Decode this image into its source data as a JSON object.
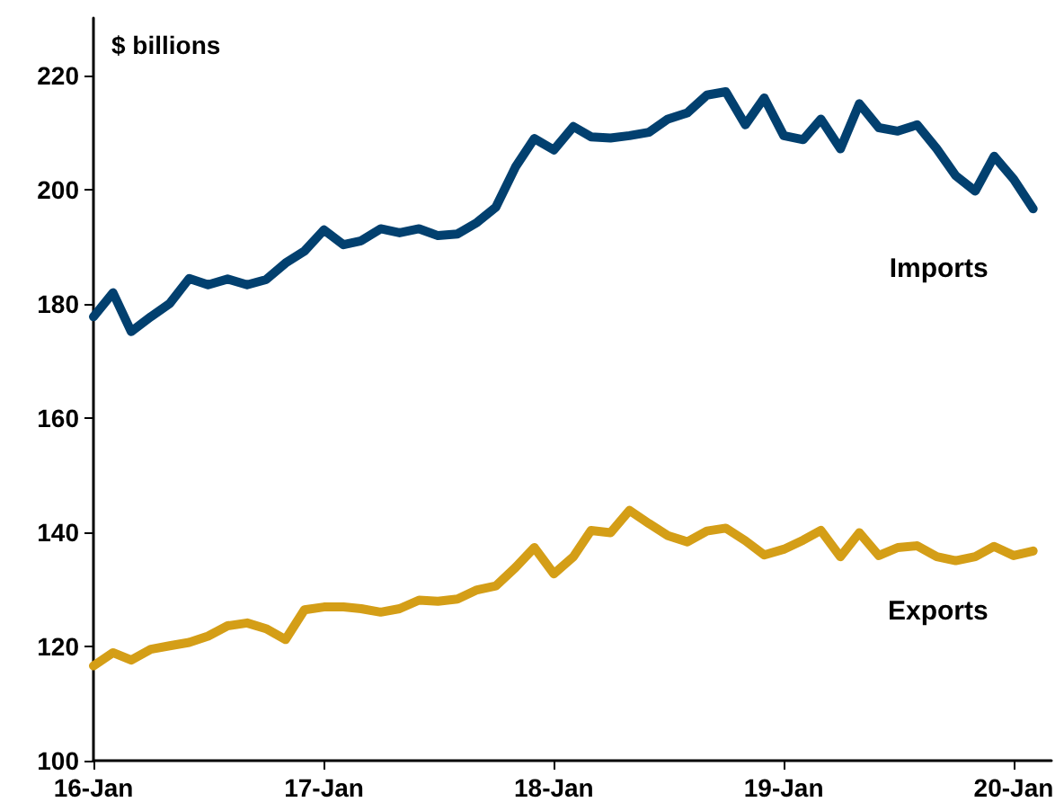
{
  "chart_data": {
    "type": "line",
    "ylabel": "$ billions",
    "x": [
      "2016-01",
      "2016-02",
      "2016-03",
      "2016-04",
      "2016-05",
      "2016-06",
      "2016-07",
      "2016-08",
      "2016-09",
      "2016-10",
      "2016-11",
      "2016-12",
      "2017-01",
      "2017-02",
      "2017-03",
      "2017-04",
      "2017-05",
      "2017-06",
      "2017-07",
      "2017-08",
      "2017-09",
      "2017-10",
      "2017-11",
      "2017-12",
      "2018-01",
      "2018-02",
      "2018-03",
      "2018-04",
      "2018-05",
      "2018-06",
      "2018-07",
      "2018-08",
      "2018-09",
      "2018-10",
      "2018-11",
      "2018-12",
      "2019-01",
      "2019-02",
      "2019-03",
      "2019-04",
      "2019-05",
      "2019-06",
      "2019-07",
      "2019-08",
      "2019-09",
      "2019-10",
      "2019-11",
      "2019-12",
      "2020-01",
      "2020-02"
    ],
    "series": [
      {
        "name": "Imports",
        "color": "#02406f",
        "values": [
          177.7,
          181.9,
          175.1,
          177.7,
          180,
          184.4,
          183.3,
          184.3,
          183.3,
          184.2,
          187.1,
          189.2,
          192.9,
          190.3,
          191,
          193.1,
          192.4,
          193.1,
          191.9,
          192.2,
          194.2,
          196.9,
          203.9,
          208.9,
          206.9,
          211,
          209.2,
          209,
          209.4,
          210,
          212.3,
          213.4,
          216.5,
          217.1,
          211.3,
          216,
          209.4,
          208.7,
          212.3,
          207.1,
          215,
          210.8,
          210.2,
          211.3,
          207.1,
          202.4,
          199.7,
          205.8,
          201.8,
          196.6
        ]
      },
      {
        "name": "Exports",
        "color": "#d49e17",
        "values": [
          116.6,
          118.9,
          117.6,
          119.5,
          120.1,
          120.7,
          121.8,
          123.6,
          124.1,
          123.1,
          121.2,
          126.4,
          126.9,
          126.9,
          126.6,
          126,
          126.6,
          128.1,
          127.9,
          128.3,
          129.9,
          130.6,
          133.8,
          137.3,
          132.7,
          135.7,
          140.3,
          139.9,
          143.8,
          141.5,
          139.4,
          138.3,
          140.2,
          140.7,
          138.5,
          136,
          137,
          138.6,
          140.3,
          135.7,
          139.9,
          135.9,
          137.3,
          137.6,
          135.7,
          135,
          135.7,
          137.5,
          135.9,
          136.7
        ]
      }
    ],
    "xlim": [
      "2016-01",
      "2020-03"
    ],
    "xticks": [
      {
        "value": "2016-01",
        "label": "16-Jan"
      },
      {
        "value": "2017-01",
        "label": "17-Jan"
      },
      {
        "value": "2018-01",
        "label": "18-Jan"
      },
      {
        "value": "2019-01",
        "label": "19-Jan"
      },
      {
        "value": "2020-01",
        "label": "20-Jan"
      }
    ],
    "ylim": [
      100,
      230
    ],
    "yticks": [
      100,
      120,
      140,
      160,
      180,
      200,
      220
    ],
    "grid": false,
    "legend": false,
    "marker": "none",
    "line_style": "solid"
  }
}
